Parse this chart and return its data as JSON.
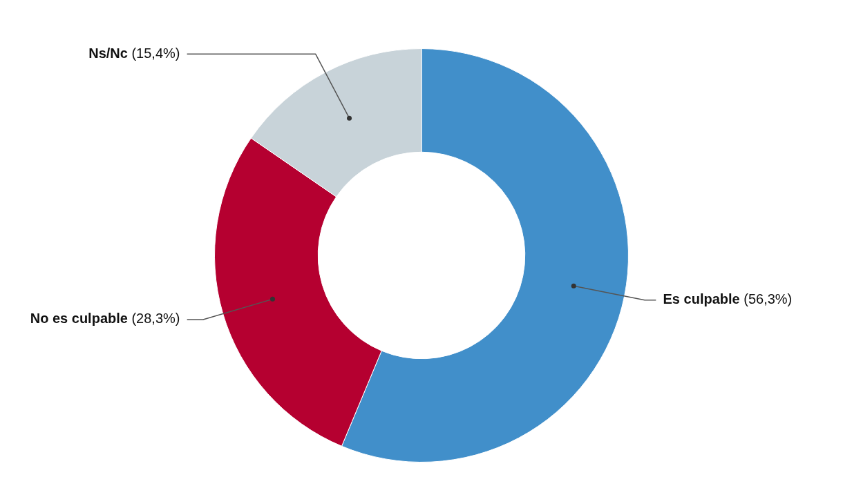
{
  "chart_data": {
    "type": "donut",
    "categories": [
      "Es culpable",
      "No es culpable",
      "Ns/Nc"
    ],
    "values": [
      56.3,
      28.3,
      15.4
    ],
    "colors": [
      "#418fca",
      "#b50030",
      "#c8d3d9"
    ],
    "value_labels": [
      "(56,3%)",
      "(28,3%)",
      "(15,4%)"
    ]
  }
}
